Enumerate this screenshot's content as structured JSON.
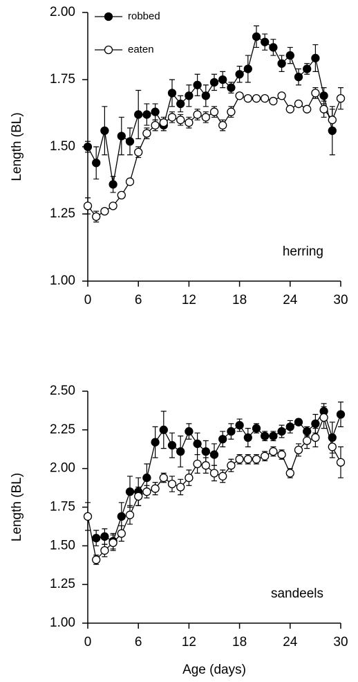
{
  "chart_data": [
    {
      "type": "line",
      "annotation": "herring",
      "ylabel": "Length (BL)",
      "x": [
        0,
        1,
        2,
        3,
        4,
        5,
        6,
        7,
        8,
        9,
        10,
        11,
        12,
        13,
        14,
        15,
        16,
        17,
        18,
        19,
        20,
        21,
        22,
        23,
        24,
        25,
        26,
        27,
        28,
        29,
        30
      ],
      "xlim": [
        0,
        30
      ],
      "xticks": [
        0,
        6,
        12,
        18,
        24,
        30
      ],
      "ylim": [
        1,
        2
      ],
      "yticks": [
        {
          "value": 1,
          "label": "1.00"
        },
        {
          "value": 1.25,
          "label": "1.25"
        },
        {
          "value": 1.5,
          "label": "1.50"
        },
        {
          "value": 1.75,
          "label": "1.75"
        },
        {
          "value": 2,
          "label": "2.00"
        }
      ],
      "legend": "top-left",
      "series": [
        {
          "name": "robbed",
          "color": "#000000",
          "marker_fill": "#000000",
          "values": [
            1.5,
            1.44,
            1.56,
            1.36,
            1.54,
            1.52,
            1.62,
            1.62,
            1.63,
            1.58,
            1.7,
            1.66,
            1.69,
            1.73,
            1.69,
            1.74,
            1.75,
            1.72,
            1.77,
            1.79,
            1.91,
            1.89,
            1.87,
            1.81,
            1.84,
            1.76,
            1.79,
            1.83,
            1.69,
            1.56,
            null
          ],
          "errors": [
            0.02,
            0.06,
            0.09,
            0.03,
            0.07,
            0.05,
            0.09,
            0.04,
            0.03,
            0.02,
            0.05,
            0.03,
            0.04,
            0.04,
            0.04,
            0.03,
            0.03,
            0.02,
            0.03,
            0.05,
            0.04,
            0.03,
            0.03,
            0.03,
            0.03,
            0.03,
            0.02,
            0.05,
            0.03,
            0.09,
            null
          ]
        },
        {
          "name": "eaten",
          "color": "#000000",
          "marker_fill": "#ffffff",
          "values": [
            1.28,
            1.24,
            1.26,
            1.28,
            1.32,
            1.37,
            1.48,
            1.55,
            1.58,
            1.59,
            1.61,
            1.6,
            1.59,
            1.62,
            1.61,
            1.63,
            1.58,
            1.63,
            1.69,
            1.68,
            1.68,
            1.68,
            1.67,
            1.69,
            1.64,
            1.66,
            1.64,
            1.7,
            1.64,
            1.6,
            1.68
          ],
          "errors": [
            0.03,
            0.02,
            0.01,
            0.01,
            0.01,
            0.01,
            0.02,
            0.02,
            0.02,
            0.02,
            0.02,
            0.02,
            0.02,
            0.02,
            0.02,
            0.02,
            0.02,
            0.02,
            0.01,
            0.01,
            0.01,
            0.01,
            0.01,
            0.01,
            0.01,
            0.01,
            0.01,
            0.02,
            0.03,
            0.04,
            0.04
          ]
        }
      ]
    },
    {
      "type": "line",
      "annotation": "sandeels",
      "ylabel": "Length (BL)",
      "xlabel": "Age (days)",
      "x": [
        0,
        1,
        2,
        3,
        4,
        5,
        6,
        7,
        8,
        9,
        10,
        11,
        12,
        13,
        14,
        15,
        16,
        17,
        18,
        19,
        20,
        21,
        22,
        23,
        24,
        25,
        26,
        27,
        28,
        29,
        30
      ],
      "xlim": [
        0,
        30
      ],
      "xticks": [
        0,
        6,
        12,
        18,
        24,
        30
      ],
      "ylim": [
        1,
        2.5
      ],
      "yticks": [
        {
          "value": 1,
          "label": "1.00"
        },
        {
          "value": 1.25,
          "label": "1.25"
        },
        {
          "value": 1.5,
          "label": "1.50"
        },
        {
          "value": 1.75,
          "label": "1.75"
        },
        {
          "value": 2,
          "label": "2.00"
        },
        {
          "value": 2.25,
          "label": "2.25"
        },
        {
          "value": 2.5,
          "label": "2.50"
        }
      ],
      "series": [
        {
          "color": "#000000",
          "marker_fill": "#000000",
          "values": [
            null,
            1.55,
            1.56,
            1.53,
            1.69,
            1.85,
            1.85,
            1.94,
            2.17,
            2.25,
            2.15,
            2.11,
            2.24,
            2.16,
            2.11,
            2.09,
            2.19,
            2.24,
            2.28,
            2.2,
            2.26,
            2.21,
            2.21,
            2.24,
            2.27,
            2.3,
            2.24,
            2.29,
            2.37,
            2.2,
            2.35
          ],
          "errors": [
            null,
            0.05,
            0.05,
            0.05,
            0.09,
            0.1,
            0.09,
            0.09,
            0.1,
            0.12,
            0.08,
            0.1,
            0.05,
            0.07,
            0.07,
            0.07,
            0.05,
            0.05,
            0.04,
            0.06,
            0.03,
            0.03,
            0.03,
            0.04,
            0.04,
            0.02,
            0.03,
            0.06,
            0.05,
            0.1,
            0.08
          ]
        },
        {
          "color": "#000000",
          "marker_fill": "#ffffff",
          "values": [
            1.69,
            1.41,
            1.47,
            1.52,
            1.58,
            1.7,
            1.82,
            1.85,
            1.87,
            1.94,
            1.9,
            1.88,
            1.94,
            2.03,
            2.02,
            1.97,
            1.95,
            2.02,
            2.06,
            2.06,
            2.06,
            2.08,
            2.11,
            2.09,
            1.97,
            2.12,
            2.18,
            2.2,
            2.33,
            2.14,
            2.04
          ],
          "errors": [
            0.09,
            0.03,
            0.04,
            0.05,
            0.05,
            0.06,
            0.06,
            0.04,
            0.04,
            0.03,
            0.05,
            0.05,
            0.05,
            0.06,
            0.05,
            0.05,
            0.04,
            0.04,
            0.03,
            0.03,
            0.03,
            0.03,
            0.03,
            0.03,
            0.03,
            0.04,
            0.05,
            0.06,
            0.07,
            0.07,
            0.1
          ]
        }
      ]
    }
  ]
}
